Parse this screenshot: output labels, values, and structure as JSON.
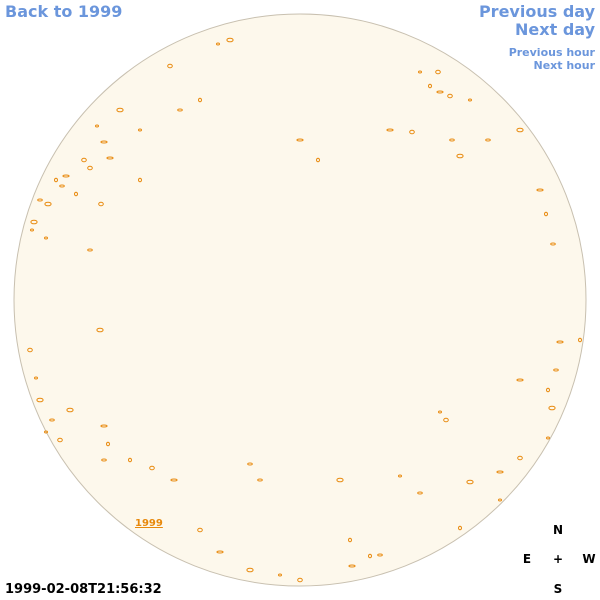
{
  "navigation": {
    "back_label": "Back to 1999",
    "previous_day_label": "Previous day",
    "next_day_label": "Next day",
    "previous_hour_label": "Previous hour",
    "next_hour_label": "Next hour"
  },
  "disk": {
    "fill_color": "#fdf8ec",
    "border_color": "#c8c0b0",
    "feature_color": "#e8890c"
  },
  "year_link": "1999",
  "compass": {
    "north": "N",
    "south": "S",
    "east": "E",
    "west": "W",
    "center": "+"
  },
  "timestamp": "1999-02-08T21:56:32",
  "colors": {
    "link": "#6b96dc",
    "feature": "#e8890c",
    "text": "#000000"
  }
}
